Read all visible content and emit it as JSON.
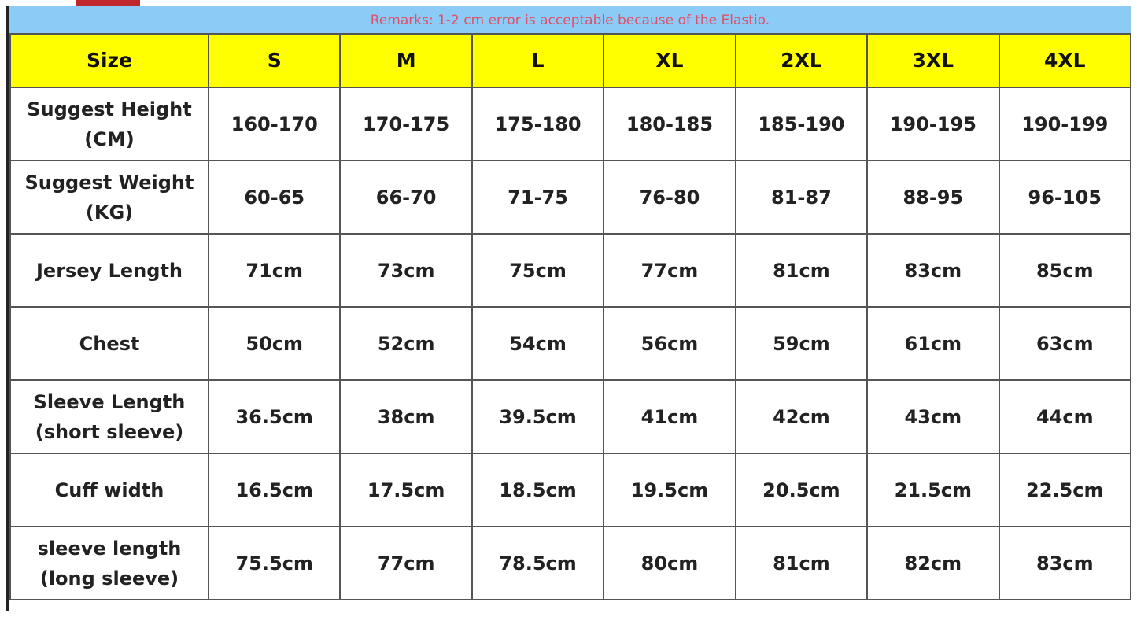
{
  "remarks": "Remarks: 1-2 cm error is acceptable because of the Elastio.",
  "colors": {
    "banner": "#8ccbf5",
    "header": "#ffff00",
    "remarks_text": "#e0506a"
  },
  "headers": [
    "Size",
    "S",
    "M",
    "L",
    "XL",
    "2XL",
    "3XL",
    "4XL"
  ],
  "rows": [
    {
      "label": [
        "Suggest Height",
        "(CM)"
      ],
      "values": [
        "160-170",
        "170-175",
        "175-180",
        "180-185",
        "185-190",
        "190-195",
        "190-199"
      ]
    },
    {
      "label": [
        "Suggest Weight",
        "(KG)"
      ],
      "values": [
        "60-65",
        "66-70",
        "71-75",
        "76-80",
        "81-87",
        "88-95",
        "96-105"
      ]
    },
    {
      "label": [
        "Jersey Length"
      ],
      "values": [
        "71cm",
        "73cm",
        "75cm",
        "77cm",
        "81cm",
        "83cm",
        "85cm"
      ]
    },
    {
      "label": [
        "Chest"
      ],
      "values": [
        "50cm",
        "52cm",
        "54cm",
        "56cm",
        "59cm",
        "61cm",
        "63cm"
      ]
    },
    {
      "label": [
        "Sleeve Length",
        "(short sleeve)"
      ],
      "values": [
        "36.5cm",
        "38cm",
        "39.5cm",
        "41cm",
        "42cm",
        "43cm",
        "44cm"
      ]
    },
    {
      "label": [
        "Cuff width"
      ],
      "values": [
        "16.5cm",
        "17.5cm",
        "18.5cm",
        "19.5cm",
        "20.5cm",
        "21.5cm",
        "22.5cm"
      ]
    },
    {
      "label": [
        "sleeve length",
        "(long sleeve)"
      ],
      "values": [
        "75.5cm",
        "77cm",
        "78.5cm",
        "80cm",
        "81cm",
        "82cm",
        "83cm"
      ]
    }
  ]
}
